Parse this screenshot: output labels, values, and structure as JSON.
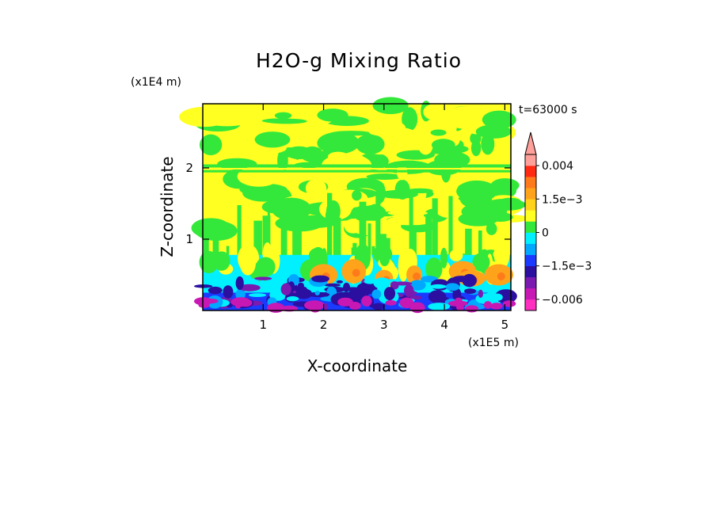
{
  "chart_data": {
    "type": "heatmap",
    "title": "H2O-g Mixing Ratio",
    "xlabel": "X-coordinate",
    "ylabel": "Z-coordinate",
    "x_unit": "(x1E5 m)",
    "y_unit": "(x1E4 m)",
    "time_label": "t=63000 s",
    "xlim": [
      0,
      5.1
    ],
    "ylim": [
      0,
      2.9
    ],
    "x_ticks": [
      {
        "value": 1,
        "label": "1"
      },
      {
        "value": 2,
        "label": "2"
      },
      {
        "value": 3,
        "label": "3"
      },
      {
        "value": 4,
        "label": "4"
      },
      {
        "value": 5,
        "label": "5"
      }
    ],
    "y_ticks": [
      {
        "value": 1,
        "label": "1"
      },
      {
        "value": 2,
        "label": "2"
      }
    ],
    "colorbar": {
      "levels": [
        -0.008,
        -0.006,
        -0.004,
        -0.002,
        -0.0015,
        -0.001,
        -0.0005,
        0,
        0.0005,
        0.001,
        0.0015,
        0.002,
        0.003,
        0.004,
        0.005
      ],
      "colors": [
        "#ff2fbf",
        "#c818b4",
        "#7a1ab0",
        "#2a0fa0",
        "#1a3aff",
        "#00a8ff",
        "#00f0ff",
        "#33e83a",
        "#ffff22",
        "#ffd21a",
        "#ffa41a",
        "#ff7a1a",
        "#ff2a12",
        "#ffa09a"
      ],
      "extend": "max",
      "labels": [
        {
          "value": -0.006,
          "label": "−0.006"
        },
        {
          "value": -0.0015,
          "label": "−1.5e−3"
        },
        {
          "value": 0,
          "label": "0"
        },
        {
          "value": 0.0015,
          "label": "1.5e−3"
        },
        {
          "value": 0.004,
          "label": "0.004"
        }
      ]
    },
    "field_description": "mostly 0 to 5e-4 (green/yellow) above 1 km; negative (cyan/blue/purple) near surface; positive blobs (orange) around z 0.3-0.6"
  },
  "colors": {
    "frame": "#000000",
    "background": "#ffffff"
  }
}
